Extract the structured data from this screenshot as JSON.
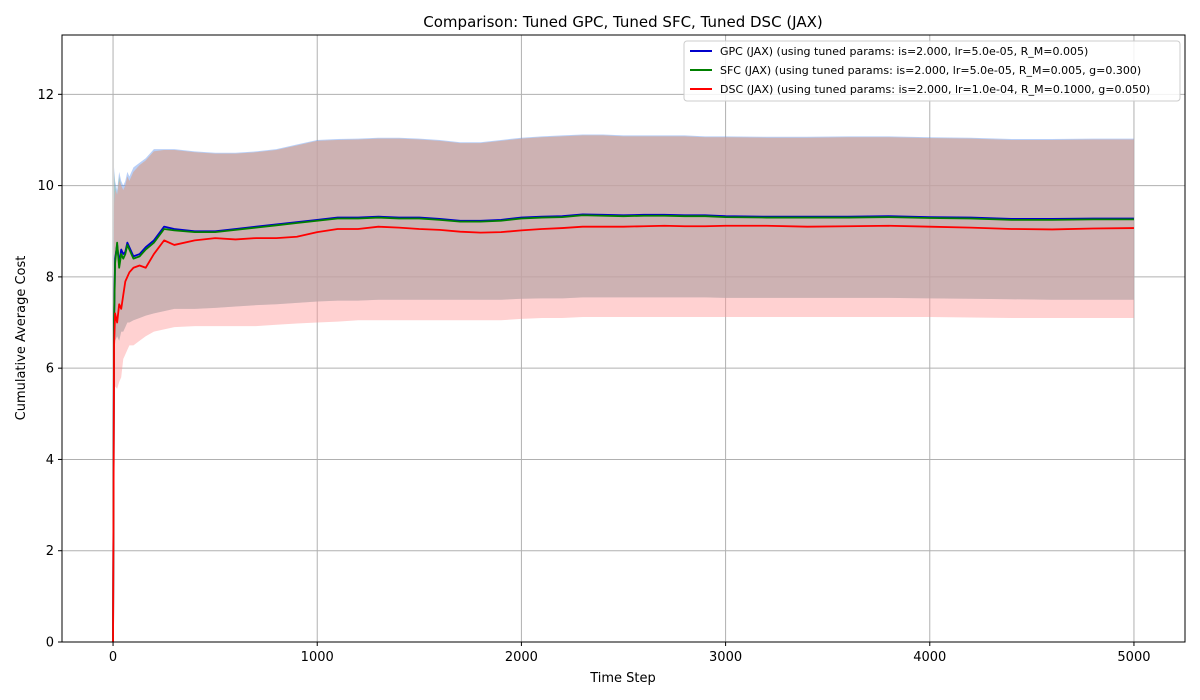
{
  "chart_data": {
    "type": "line",
    "title": "Comparison: Tuned GPC, Tuned SFC, Tuned DSC (JAX)",
    "xlabel": "Time Step",
    "ylabel": "Cumulative Average Cost",
    "xlim": [
      -250,
      5250
    ],
    "ylim": [
      0,
      13.3
    ],
    "xticks": [
      0,
      1000,
      2000,
      3000,
      4000,
      5000
    ],
    "yticks": [
      0,
      2,
      4,
      6,
      8,
      10,
      12
    ],
    "grid": true,
    "legend_position": "top-right",
    "series": [
      {
        "name": "GPC (JAX) (using tuned params: is=2.000, lr=5.0e-05, R_M=0.005)",
        "color": "#0000cc",
        "band_color": "#6495ed",
        "x": [
          0,
          5,
          10,
          20,
          30,
          40,
          50,
          60,
          70,
          80,
          100,
          130,
          160,
          200,
          250,
          300,
          400,
          500,
          600,
          700,
          800,
          900,
          1000,
          1100,
          1200,
          1300,
          1400,
          1500,
          1600,
          1700,
          1800,
          1900,
          2000,
          2100,
          2200,
          2300,
          2400,
          2500,
          2600,
          2700,
          2800,
          2900,
          3000,
          3200,
          3400,
          3600,
          3800,
          4000,
          4200,
          4400,
          4600,
          4800,
          5000
        ],
        "values": [
          0.0,
          7.0,
          8.4,
          8.7,
          8.3,
          8.6,
          8.5,
          8.55,
          8.75,
          8.65,
          8.45,
          8.5,
          8.65,
          8.8,
          9.1,
          9.05,
          9.0,
          9.0,
          9.05,
          9.1,
          9.15,
          9.2,
          9.25,
          9.3,
          9.3,
          9.32,
          9.3,
          9.3,
          9.27,
          9.23,
          9.23,
          9.25,
          9.3,
          9.32,
          9.33,
          9.37,
          9.36,
          9.35,
          9.36,
          9.36,
          9.35,
          9.35,
          9.33,
          9.32,
          9.32,
          9.32,
          9.33,
          9.31,
          9.3,
          9.27,
          9.27,
          9.28,
          9.28
        ],
        "lower": [
          0.0,
          5.8,
          6.6,
          6.7,
          6.6,
          6.8,
          6.8,
          6.9,
          7.0,
          7.0,
          7.05,
          7.1,
          7.15,
          7.2,
          7.25,
          7.3,
          7.3,
          7.32,
          7.35,
          7.38,
          7.4,
          7.43,
          7.46,
          7.48,
          7.48,
          7.5,
          7.5,
          7.5,
          7.5,
          7.5,
          7.5,
          7.5,
          7.52,
          7.53,
          7.53,
          7.55,
          7.55,
          7.55,
          7.55,
          7.55,
          7.55,
          7.55,
          7.54,
          7.54,
          7.54,
          7.54,
          7.54,
          7.53,
          7.52,
          7.51,
          7.5,
          7.5,
          7.5
        ],
        "upper": [
          0.0,
          10.4,
          10.1,
          9.9,
          10.3,
          10.1,
          10.0,
          10.1,
          10.3,
          10.2,
          10.4,
          10.5,
          10.6,
          10.8,
          10.8,
          10.8,
          10.75,
          10.72,
          10.72,
          10.75,
          10.8,
          10.9,
          11.0,
          11.02,
          11.03,
          11.05,
          11.05,
          11.03,
          11.0,
          10.95,
          10.95,
          11.0,
          11.05,
          11.08,
          11.1,
          11.12,
          11.12,
          11.1,
          11.1,
          11.1,
          11.1,
          11.08,
          11.08,
          11.07,
          11.07,
          11.08,
          11.08,
          11.06,
          11.05,
          11.02,
          11.02,
          11.03,
          11.03
        ]
      },
      {
        "name": "SFC (JAX) (using tuned params: is=2.000, lr=5.0e-05, R_M=0.005, g=0.300)",
        "color": "#008000",
        "band_color": "#8fbc8f",
        "x": [
          0,
          5,
          10,
          20,
          30,
          40,
          50,
          60,
          70,
          80,
          100,
          130,
          160,
          200,
          250,
          300,
          400,
          500,
          600,
          700,
          800,
          900,
          1000,
          1100,
          1200,
          1300,
          1400,
          1500,
          1600,
          1700,
          1800,
          1900,
          2000,
          2100,
          2200,
          2300,
          2400,
          2500,
          2600,
          2700,
          2800,
          2900,
          3000,
          3200,
          3400,
          3600,
          3800,
          4000,
          4200,
          4400,
          4600,
          4800,
          5000
        ],
        "values": [
          0.0,
          7.0,
          8.3,
          8.75,
          8.2,
          8.5,
          8.4,
          8.5,
          8.7,
          8.6,
          8.4,
          8.45,
          8.6,
          8.75,
          9.05,
          9.02,
          8.98,
          8.98,
          9.03,
          9.08,
          9.13,
          9.18,
          9.23,
          9.28,
          9.28,
          9.3,
          9.28,
          9.28,
          9.25,
          9.21,
          9.21,
          9.23,
          9.28,
          9.3,
          9.31,
          9.35,
          9.34,
          9.33,
          9.34,
          9.34,
          9.33,
          9.33,
          9.31,
          9.3,
          9.3,
          9.3,
          9.31,
          9.29,
          9.28,
          9.25,
          9.25,
          9.26,
          9.26
        ],
        "lower": [
          0.0,
          5.8,
          6.6,
          6.7,
          6.6,
          6.8,
          6.8,
          6.9,
          7.0,
          7.0,
          7.05,
          7.1,
          7.15,
          7.2,
          7.25,
          7.3,
          7.3,
          7.32,
          7.35,
          7.38,
          7.4,
          7.43,
          7.46,
          7.48,
          7.48,
          7.5,
          7.5,
          7.5,
          7.5,
          7.5,
          7.5,
          7.5,
          7.52,
          7.53,
          7.53,
          7.55,
          7.55,
          7.55,
          7.55,
          7.55,
          7.55,
          7.55,
          7.54,
          7.54,
          7.54,
          7.54,
          7.54,
          7.53,
          7.52,
          7.51,
          7.5,
          7.5,
          7.5
        ],
        "upper": [
          0.0,
          10.3,
          10.0,
          9.8,
          10.2,
          10.0,
          9.9,
          10.0,
          10.2,
          10.1,
          10.3,
          10.45,
          10.55,
          10.75,
          10.78,
          10.78,
          10.73,
          10.7,
          10.7,
          10.73,
          10.78,
          10.88,
          10.98,
          11.0,
          11.01,
          11.03,
          11.03,
          11.01,
          10.98,
          10.93,
          10.93,
          10.98,
          11.03,
          11.06,
          11.08,
          11.1,
          11.1,
          11.08,
          11.08,
          11.08,
          11.08,
          11.06,
          11.06,
          11.05,
          11.05,
          11.06,
          11.06,
          11.04,
          11.03,
          11.0,
          11.0,
          11.01,
          11.01
        ]
      },
      {
        "name": "DSC (JAX) (using tuned params: is=2.000, lr=1.0e-04, R_M=0.1000, g=0.050)",
        "color": "#ff0000",
        "band_color": "#ff9999",
        "x": [
          0,
          5,
          10,
          20,
          30,
          40,
          50,
          60,
          70,
          80,
          100,
          130,
          160,
          200,
          250,
          300,
          400,
          500,
          600,
          700,
          800,
          900,
          1000,
          1100,
          1200,
          1300,
          1400,
          1500,
          1600,
          1700,
          1800,
          1900,
          2000,
          2100,
          2200,
          2300,
          2400,
          2500,
          2600,
          2700,
          2800,
          2900,
          3000,
          3200,
          3400,
          3600,
          3800,
          4000,
          4200,
          4400,
          4600,
          4800,
          5000
        ],
        "values": [
          0.0,
          6.5,
          7.2,
          7.0,
          7.4,
          7.3,
          7.6,
          7.9,
          8.0,
          8.1,
          8.2,
          8.25,
          8.2,
          8.5,
          8.8,
          8.7,
          8.8,
          8.85,
          8.82,
          8.85,
          8.85,
          8.88,
          8.98,
          9.05,
          9.05,
          9.1,
          9.08,
          9.05,
          9.03,
          8.99,
          8.97,
          8.98,
          9.02,
          9.05,
          9.07,
          9.1,
          9.1,
          9.1,
          9.11,
          9.12,
          9.11,
          9.11,
          9.12,
          9.12,
          9.1,
          9.11,
          9.12,
          9.1,
          9.08,
          9.05,
          9.04,
          9.06,
          9.07
        ],
        "lower": [
          0.0,
          5.2,
          5.6,
          5.55,
          5.7,
          5.8,
          6.2,
          6.3,
          6.4,
          6.5,
          6.5,
          6.6,
          6.7,
          6.8,
          6.85,
          6.9,
          6.92,
          6.92,
          6.92,
          6.92,
          6.95,
          6.98,
          7.0,
          7.02,
          7.05,
          7.05,
          7.05,
          7.05,
          7.05,
          7.05,
          7.05,
          7.05,
          7.08,
          7.1,
          7.1,
          7.12,
          7.12,
          7.12,
          7.12,
          7.12,
          7.12,
          7.12,
          7.12,
          7.12,
          7.12,
          7.12,
          7.12,
          7.12,
          7.11,
          7.1,
          7.1,
          7.1,
          7.1
        ],
        "upper": [
          0.0,
          9.6,
          9.9,
          9.8,
          10.1,
          10.0,
          9.9,
          10.0,
          10.2,
          10.1,
          10.3,
          10.45,
          10.55,
          10.75,
          10.78,
          10.78,
          10.73,
          10.7,
          10.7,
          10.73,
          10.78,
          10.88,
          10.98,
          11.0,
          11.01,
          11.03,
          11.03,
          11.01,
          10.98,
          10.93,
          10.93,
          10.98,
          11.03,
          11.06,
          11.08,
          11.1,
          11.1,
          11.08,
          11.08,
          11.08,
          11.08,
          11.06,
          11.06,
          11.05,
          11.05,
          11.06,
          11.06,
          11.04,
          11.03,
          11.0,
          11.0,
          11.01,
          11.01
        ]
      }
    ]
  }
}
